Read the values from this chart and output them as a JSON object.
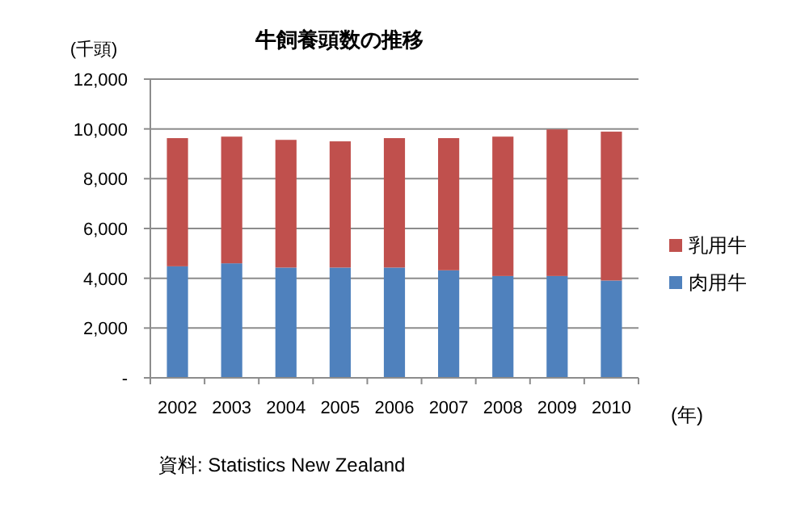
{
  "chart_data": {
    "type": "bar",
    "title": "牛飼養頭数の推移",
    "ylabel": "(千頭)",
    "xlabel": "(年)",
    "annotations": [
      "資料: Statistics New Zealand"
    ],
    "categories": [
      "2002",
      "2003",
      "2004",
      "2005",
      "2006",
      "2007",
      "2008",
      "2009",
      "2010"
    ],
    "stacked": true,
    "series": [
      {
        "name": "肉用牛",
        "color": "#4f81bd",
        "values": [
          4480,
          4600,
          4430,
          4430,
          4430,
          4320,
          4090,
          4090,
          3910
        ]
      },
      {
        "name": "乳用牛",
        "color": "#c0504d",
        "values": [
          5150,
          5090,
          5130,
          5070,
          5200,
          5310,
          5600,
          5890,
          5980
        ]
      }
    ],
    "ylim": [
      0,
      12000
    ],
    "yticks": [
      {
        "value": 0,
        "label": "-"
      },
      {
        "value": 2000,
        "label": "2,000"
      },
      {
        "value": 4000,
        "label": "4,000"
      },
      {
        "value": 6000,
        "label": "6,000"
      },
      {
        "value": 8000,
        "label": "8,000"
      },
      {
        "value": 10000,
        "label": "10,000"
      },
      {
        "value": 12000,
        "label": "12,000"
      }
    ],
    "grid": "y",
    "legend": "right"
  }
}
